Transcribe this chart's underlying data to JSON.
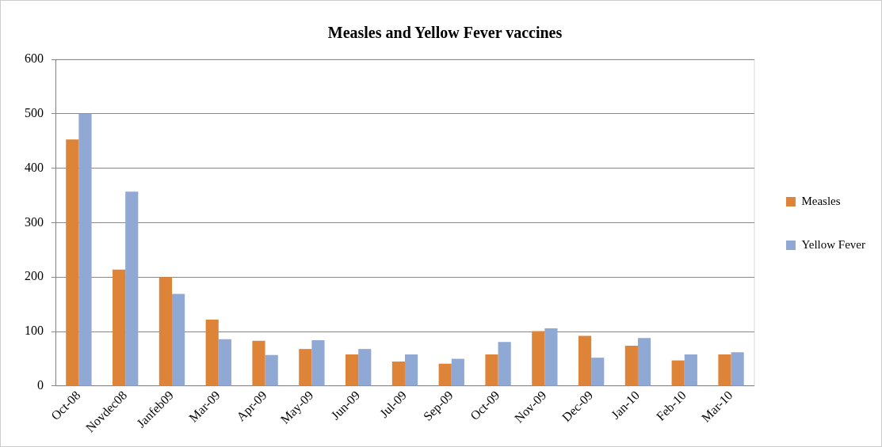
{
  "chart_data": {
    "type": "bar",
    "title": "Measles and Yellow Fever vaccines",
    "categories": [
      "Oct-08",
      "Novdec08",
      "Janfeb09",
      "Mar-09",
      "Apr-09",
      "May-09",
      "Jun-09",
      "Jul-09",
      "Sep-09",
      "Oct-09",
      "Nov-09",
      "Dec-09",
      "Jan-10",
      "Feb-10",
      "Mar-10"
    ],
    "series": [
      {
        "name": "Measles",
        "color": "#dd8439",
        "values": [
          453,
          214,
          200,
          122,
          83,
          68,
          58,
          45,
          41,
          58,
          101,
          92,
          74,
          47,
          58
        ]
      },
      {
        "name": "Yellow Fever",
        "color": "#8fa8d4",
        "values": [
          500,
          357,
          169,
          86,
          57,
          84,
          68,
          58,
          50,
          81,
          106,
          52,
          88,
          58,
          62
        ]
      }
    ],
    "ylim": [
      0,
      600
    ],
    "yticks": [
      0,
      100,
      200,
      300,
      400,
      500,
      600
    ],
    "grid": "y",
    "legend": "right"
  }
}
